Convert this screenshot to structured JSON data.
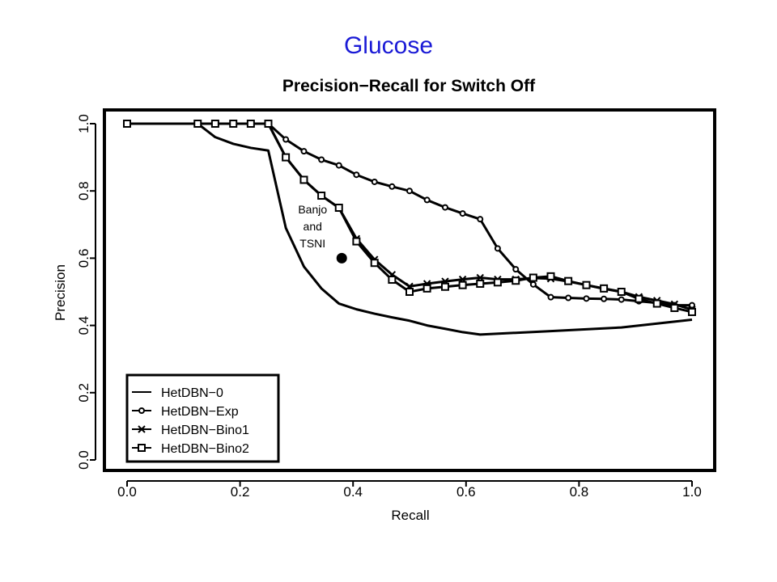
{
  "header": {
    "supertitle": "Glucose"
  },
  "chart_data": {
    "type": "line",
    "title": "Precision−Recall for Switch Off",
    "xlabel": "Recall",
    "ylabel": "Precision",
    "xlim": [
      0,
      1
    ],
    "ylim": [
      0,
      1
    ],
    "xticks": [
      0.0,
      0.2,
      0.4,
      0.6,
      0.8,
      1.0
    ],
    "yticks": [
      0.0,
      0.2,
      0.4,
      0.6,
      0.8,
      1.0
    ],
    "xtick_labels": [
      "0.0",
      "0.2",
      "0.4",
      "0.6",
      "0.8",
      "1.0"
    ],
    "ytick_labels": [
      "0.0",
      "0.2",
      "0.4",
      "0.6",
      "0.8",
      "1.0"
    ],
    "legend_position": "bottom-left",
    "grid": false,
    "series": [
      {
        "name": "HetDBN−0",
        "marker": "none",
        "x": [
          0.0,
          0.125,
          0.156,
          0.188,
          0.219,
          0.25,
          0.281,
          0.313,
          0.344,
          0.375,
          0.406,
          0.438,
          0.469,
          0.5,
          0.531,
          0.563,
          0.594,
          0.625,
          0.75,
          0.875,
          1.0
        ],
        "y": [
          1.0,
          1.0,
          0.96,
          0.94,
          0.928,
          0.92,
          0.69,
          0.575,
          0.51,
          0.465,
          0.448,
          0.435,
          0.424,
          0.414,
          0.4,
          0.39,
          0.38,
          0.373,
          0.383,
          0.394,
          0.417
        ]
      },
      {
        "name": "HetDBN−Exp",
        "marker": "circle",
        "x": [
          0.0,
          0.125,
          0.156,
          0.188,
          0.219,
          0.25,
          0.281,
          0.313,
          0.344,
          0.375,
          0.406,
          0.438,
          0.469,
          0.5,
          0.531,
          0.563,
          0.594,
          0.625,
          0.656,
          0.688,
          0.719,
          0.75,
          0.781,
          0.813,
          0.844,
          0.875,
          0.906,
          0.938,
          0.969,
          1.0
        ],
        "y": [
          1.0,
          1.0,
          1.0,
          1.0,
          1.0,
          1.0,
          0.953,
          0.918,
          0.893,
          0.876,
          0.848,
          0.827,
          0.813,
          0.8,
          0.773,
          0.751,
          0.733,
          0.716,
          0.629,
          0.567,
          0.522,
          0.484,
          0.482,
          0.48,
          0.479,
          0.477,
          0.472,
          0.467,
          0.46,
          0.46
        ]
      },
      {
        "name": "HetDBN−Bino1",
        "marker": "x",
        "x": [
          0.0,
          0.125,
          0.156,
          0.188,
          0.219,
          0.25,
          0.281,
          0.313,
          0.344,
          0.375,
          0.406,
          0.438,
          0.469,
          0.5,
          0.531,
          0.563,
          0.594,
          0.625,
          0.656,
          0.688,
          0.719,
          0.75,
          0.781,
          0.813,
          0.844,
          0.875,
          0.906,
          0.938,
          0.969,
          1.0
        ],
        "y": [
          1.0,
          1.0,
          1.0,
          1.0,
          1.0,
          1.0,
          0.9,
          0.833,
          0.786,
          0.75,
          0.658,
          0.596,
          0.551,
          0.516,
          0.524,
          0.531,
          0.537,
          0.542,
          0.537,
          0.537,
          0.541,
          0.539,
          0.531,
          0.52,
          0.509,
          0.5,
          0.485,
          0.474,
          0.463,
          0.447
        ]
      },
      {
        "name": "HetDBN−Bino2",
        "marker": "square",
        "x": [
          0.0,
          0.125,
          0.156,
          0.188,
          0.219,
          0.25,
          0.281,
          0.313,
          0.344,
          0.375,
          0.406,
          0.438,
          0.469,
          0.5,
          0.531,
          0.563,
          0.594,
          0.625,
          0.656,
          0.688,
          0.719,
          0.75,
          0.781,
          0.813,
          0.844,
          0.875,
          0.906,
          0.938,
          0.969,
          1.0
        ],
        "y": [
          1.0,
          1.0,
          1.0,
          1.0,
          1.0,
          1.0,
          0.9,
          0.833,
          0.786,
          0.75,
          0.65,
          0.586,
          0.536,
          0.5,
          0.51,
          0.515,
          0.52,
          0.524,
          0.528,
          0.533,
          0.542,
          0.546,
          0.532,
          0.52,
          0.51,
          0.5,
          0.479,
          0.465,
          0.452,
          0.44
        ]
      }
    ],
    "annotations": [
      {
        "label_lines": [
          "Banjo",
          "and",
          "TSNI"
        ],
        "point": {
          "x": 0.38,
          "y": 0.6
        }
      }
    ]
  }
}
